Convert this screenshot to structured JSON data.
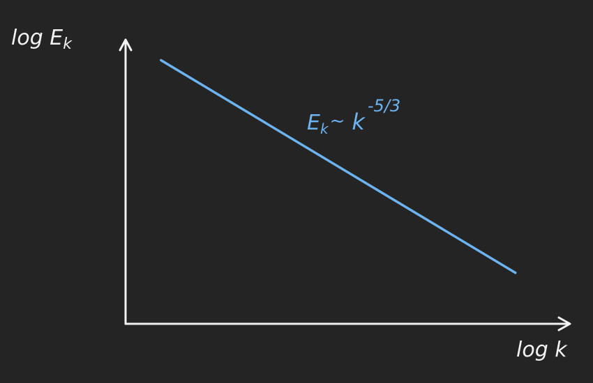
{
  "background_color": "#242424",
  "axis_color": "#f2f2f2",
  "line_color": "#6cb3f0",
  "chart_data": {
    "type": "line",
    "xlabel": "log k",
    "ylabel": "log E",
    "ylabel_subscript": "k",
    "grid": false,
    "legend": "none",
    "ticks": "none",
    "series": [
      {
        "x": [
          0.08,
          0.88
        ],
        "y": [
          0.93,
          0.18
        ],
        "label": {
          "base": "E",
          "subscript": "k",
          "operator": "~",
          "variable": "k",
          "exponent": "-5/3"
        }
      }
    ]
  }
}
